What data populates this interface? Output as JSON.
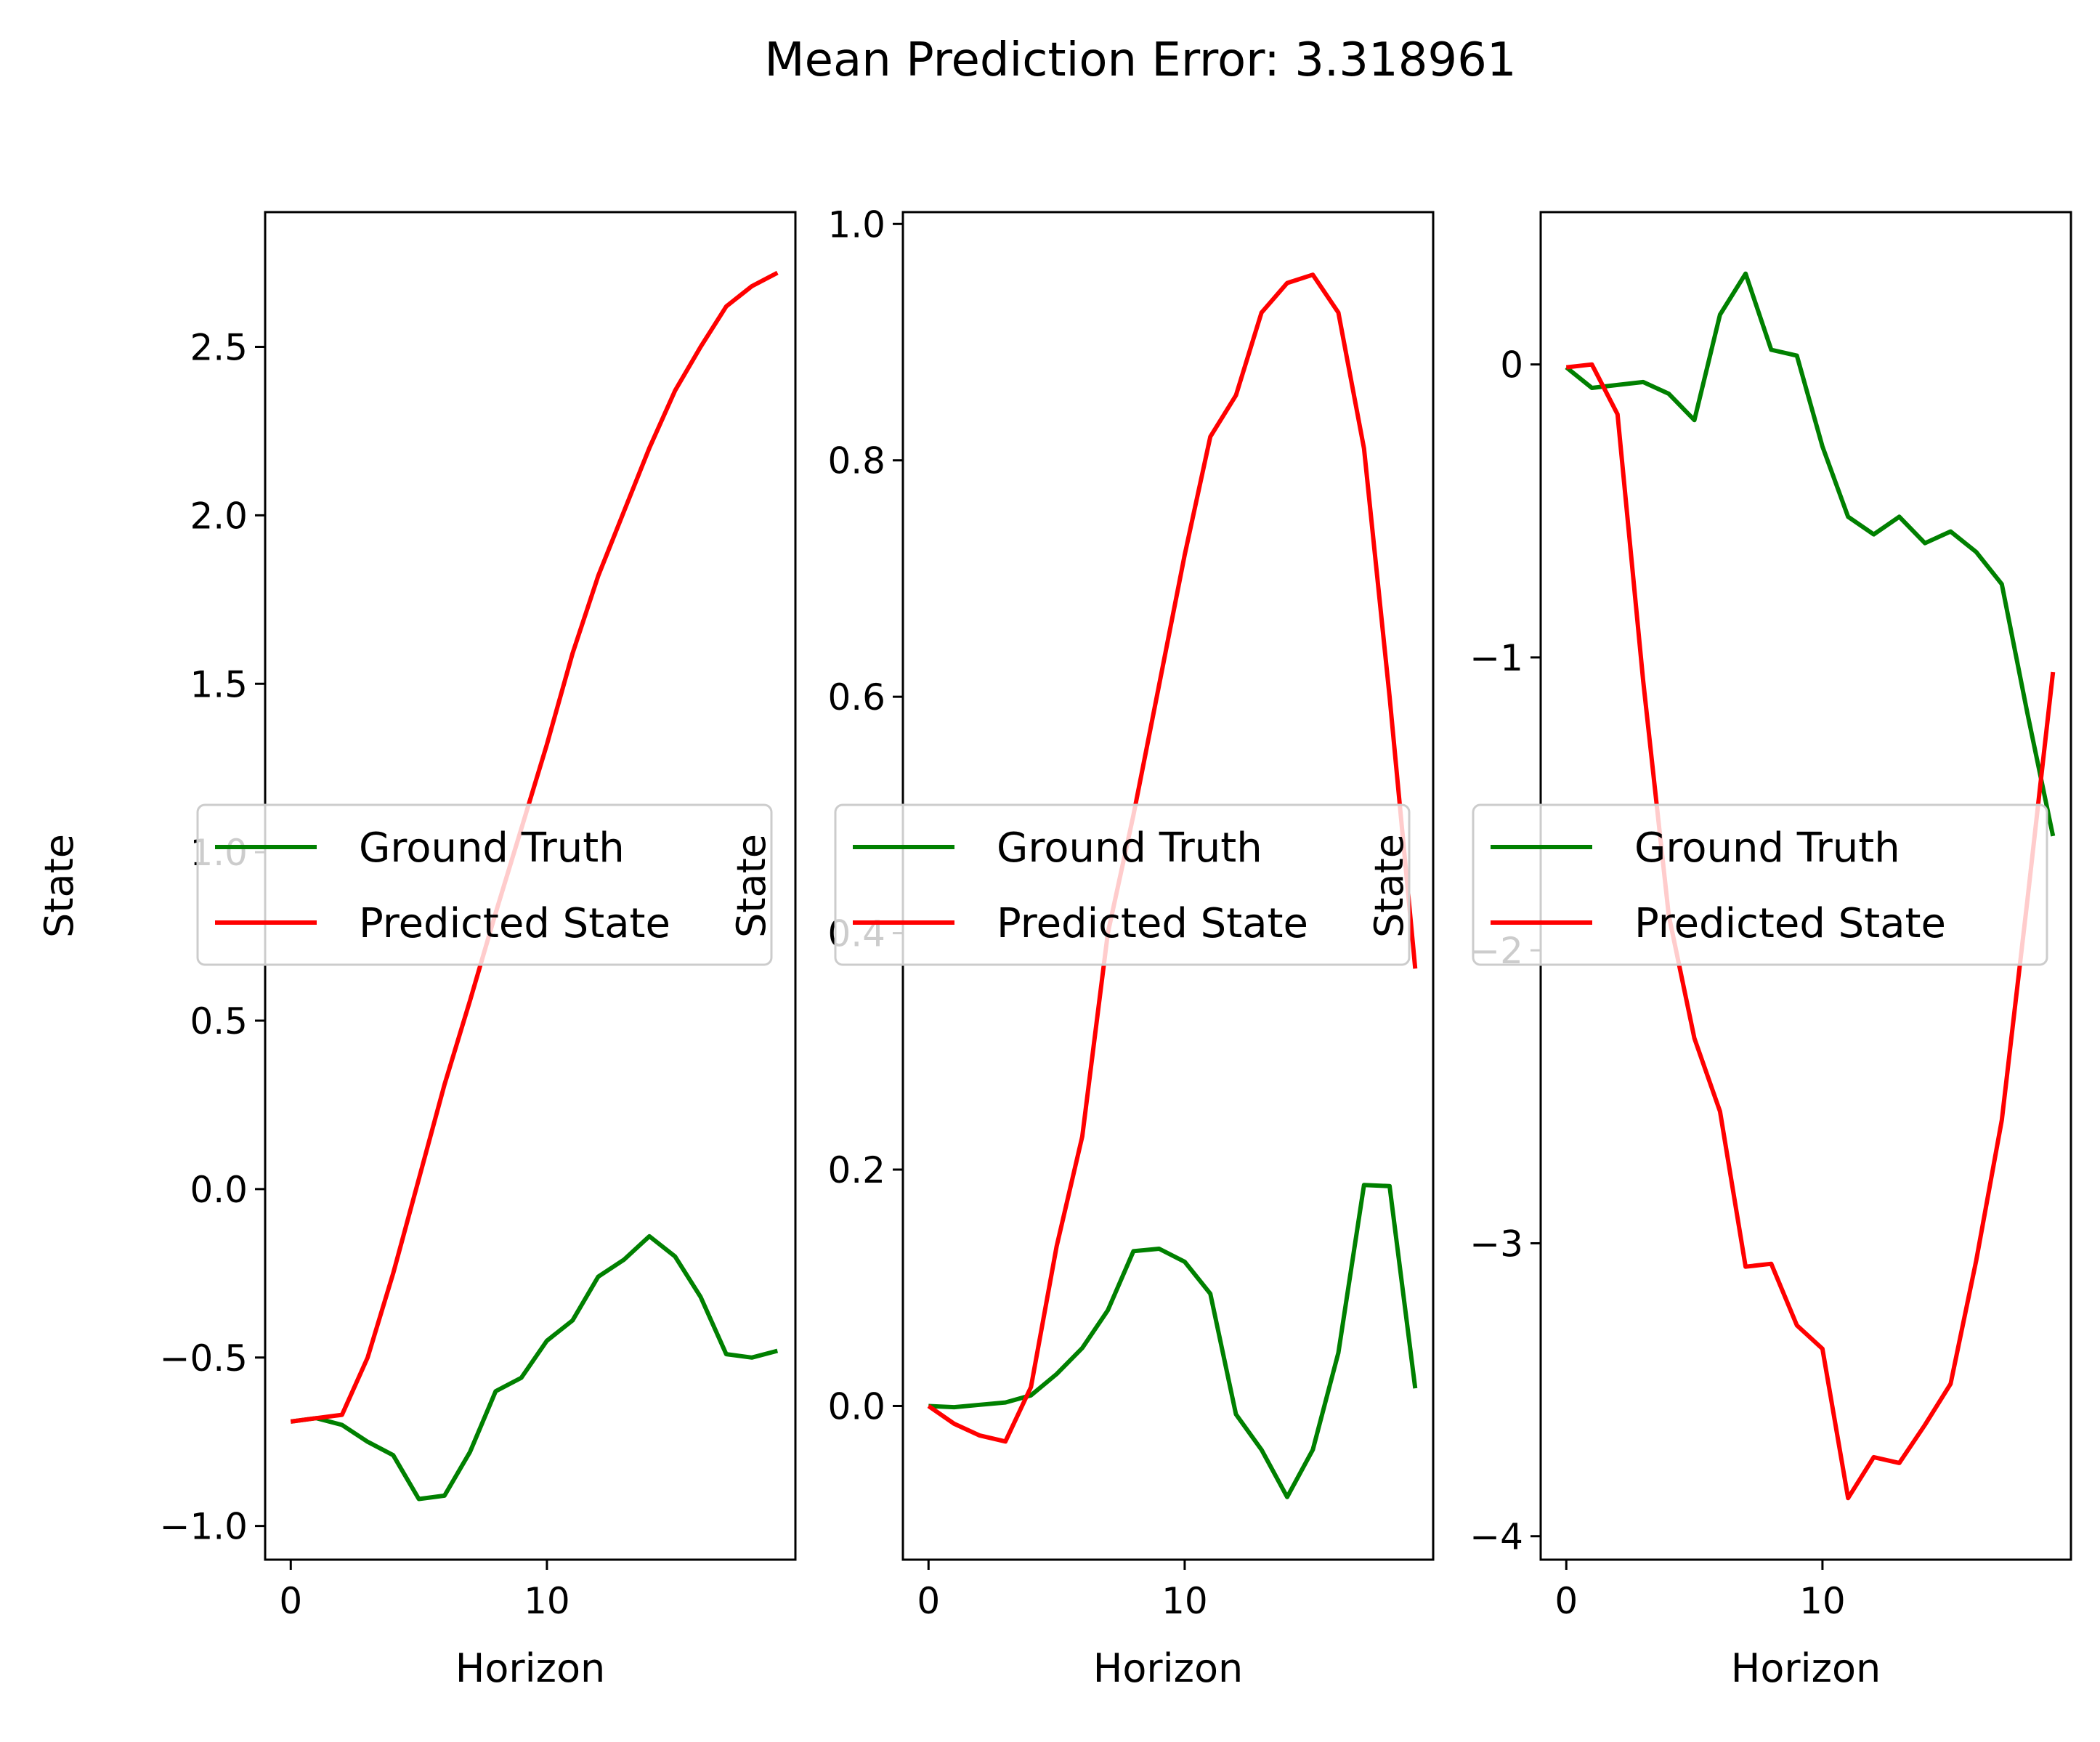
{
  "title": "Mean Prediction Error: 3.318961",
  "colors": {
    "ground_truth": "#008000",
    "predicted": "#ff0000",
    "axes": "#000000",
    "legend_border": "#cccccc"
  },
  "chart_data": [
    {
      "type": "line",
      "xlabel": "Horizon",
      "ylabel": "State",
      "xlim": [
        -1,
        19.7
      ],
      "ylim": [
        -1.1,
        2.9
      ],
      "xticks": [
        0,
        10
      ],
      "xtick_labels": [
        "0",
        "10"
      ],
      "yticks": [
        -1.0,
        -0.5,
        0.0,
        0.5,
        1.0,
        1.5,
        2.0,
        2.5
      ],
      "ytick_labels": [
        "−1.0",
        "−0.5",
        "0.0",
        "0.5",
        "1.0",
        "1.5",
        "2.0",
        "2.5"
      ],
      "legend_position": "center-left",
      "series": [
        {
          "name": "Ground Truth",
          "color_key": "ground_truth",
          "x": [
            0,
            1,
            2,
            3,
            4,
            5,
            6,
            7,
            8,
            9,
            10,
            11,
            12,
            13,
            14,
            15,
            16,
            17,
            18,
            19
          ],
          "values": [
            -0.69,
            -0.68,
            -0.7,
            -0.75,
            -0.79,
            -0.92,
            -0.91,
            -0.78,
            -0.6,
            -0.56,
            -0.45,
            -0.39,
            -0.26,
            -0.21,
            -0.14,
            -0.2,
            -0.32,
            -0.49,
            -0.5,
            -0.48
          ]
        },
        {
          "name": "Predicted State",
          "color_key": "predicted",
          "x": [
            0,
            1,
            2,
            3,
            4,
            5,
            6,
            7,
            8,
            9,
            10,
            11,
            12,
            13,
            14,
            15,
            16,
            17,
            18,
            19
          ],
          "values": [
            -0.69,
            -0.68,
            -0.67,
            -0.5,
            -0.25,
            0.03,
            0.31,
            0.56,
            0.82,
            1.07,
            1.32,
            1.59,
            1.82,
            2.01,
            2.2,
            2.37,
            2.5,
            2.62,
            2.68,
            2.72
          ]
        }
      ]
    },
    {
      "type": "line",
      "xlabel": "Horizon",
      "ylabel": "State",
      "xlim": [
        -1,
        19.7
      ],
      "ylim": [
        -0.13,
        1.01
      ],
      "xticks": [
        0,
        10
      ],
      "xtick_labels": [
        "0",
        "10"
      ],
      "yticks": [
        0.0,
        0.2,
        0.4,
        0.6,
        0.8,
        1.0
      ],
      "ytick_labels": [
        "0.0",
        "0.2",
        "0.4",
        "0.6",
        "0.8",
        "1.0"
      ],
      "legend_position": "center-left",
      "series": [
        {
          "name": "Ground Truth",
          "color_key": "ground_truth",
          "x": [
            0,
            1,
            2,
            3,
            4,
            5,
            6,
            7,
            8,
            9,
            10,
            11,
            12,
            13,
            14,
            15,
            16,
            17,
            18,
            19
          ],
          "values": [
            0.0,
            -0.001,
            0.001,
            0.003,
            0.009,
            0.027,
            0.049,
            0.081,
            0.131,
            0.133,
            0.122,
            0.095,
            -0.007,
            -0.037,
            -0.077,
            -0.037,
            0.045,
            0.187,
            0.186,
            0.015
          ]
        },
        {
          "name": "Predicted State",
          "color_key": "predicted",
          "x": [
            0,
            1,
            2,
            3,
            4,
            5,
            6,
            7,
            8,
            9,
            10,
            11,
            12,
            13,
            14,
            15,
            16,
            17,
            18,
            19
          ],
          "values": [
            0.0,
            -0.015,
            -0.025,
            -0.03,
            0.016,
            0.135,
            0.228,
            0.4,
            0.5,
            0.61,
            0.72,
            0.82,
            0.855,
            0.925,
            0.95,
            0.957,
            0.925,
            0.81,
            0.6,
            0.37
          ]
        }
      ]
    },
    {
      "type": "line",
      "xlabel": "Horizon",
      "ylabel": "State",
      "xlim": [
        -1,
        19.7
      ],
      "ylim": [
        -4.08,
        0.52
      ],
      "xticks": [
        0,
        10
      ],
      "xtick_labels": [
        "0",
        "10"
      ],
      "yticks": [
        -4,
        -3,
        -2,
        -1,
        0
      ],
      "ytick_labels": [
        "−4",
        "−3",
        "−2",
        "−1",
        "0"
      ],
      "legend_position": "center-left",
      "series": [
        {
          "name": "Ground Truth",
          "color_key": "ground_truth",
          "x": [
            0,
            1,
            2,
            3,
            4,
            5,
            6,
            7,
            8,
            9,
            10,
            11,
            12,
            13,
            14,
            15,
            16,
            17,
            18,
            19
          ],
          "values": [
            -0.01,
            -0.08,
            -0.07,
            -0.06,
            -0.1,
            -0.19,
            0.17,
            0.31,
            0.05,
            0.03,
            -0.28,
            -0.52,
            -0.58,
            -0.52,
            -0.61,
            -0.57,
            -0.64,
            -0.75,
            -1.19,
            -1.61
          ]
        },
        {
          "name": "Predicted State",
          "color_key": "predicted",
          "x": [
            0,
            1,
            2,
            3,
            4,
            5,
            6,
            7,
            8,
            9,
            10,
            11,
            12,
            13,
            14,
            15,
            16,
            17,
            18,
            19
          ],
          "values": [
            -0.01,
            0.0,
            -0.17,
            -1.08,
            -1.88,
            -2.3,
            -2.55,
            -3.08,
            -3.07,
            -3.28,
            -3.36,
            -3.87,
            -3.73,
            -3.75,
            -3.62,
            -3.48,
            -3.06,
            -2.58,
            -1.83,
            -1.05
          ]
        }
      ]
    }
  ]
}
